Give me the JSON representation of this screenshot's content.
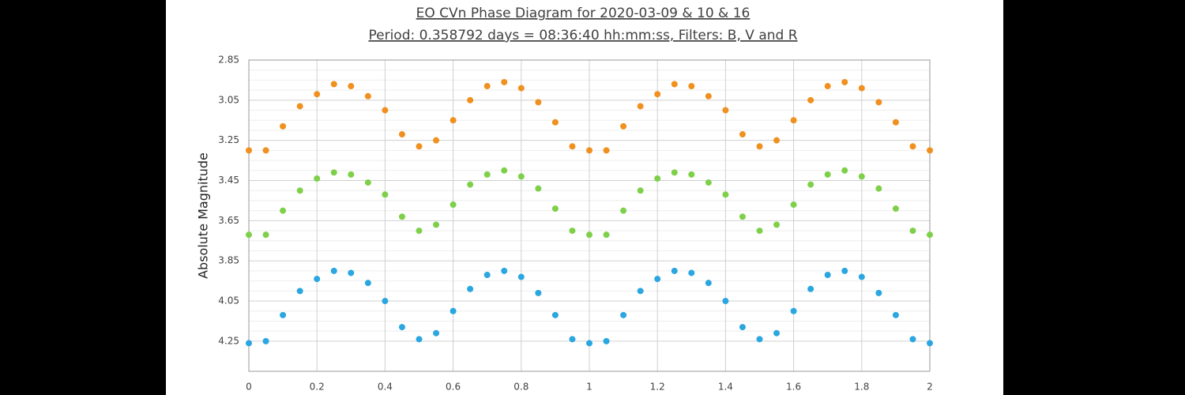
{
  "chart_data": {
    "type": "scatter",
    "title": "EO CVn Phase Diagram for 2020-03-09 & 10 & 16",
    "subtitle": "Period: 0.358792 days = 08:36:40 hh:mm:ss, Filters: B, V and R",
    "y_label": "Absolute Magnitude",
    "x": [
      0,
      0.05,
      0.1,
      0.15,
      0.2,
      0.25,
      0.3,
      0.35,
      0.4,
      0.45,
      0.5,
      0.55,
      0.6,
      0.65,
      0.7,
      0.75,
      0.8,
      0.85,
      0.9,
      0.95,
      1,
      1.05,
      1.1,
      1.15,
      1.2,
      1.25,
      1.3,
      1.35,
      1.4,
      1.45,
      1.5,
      1.55,
      1.6,
      1.65,
      1.7,
      1.75,
      1.8,
      1.85,
      1.9,
      1.95,
      2
    ],
    "series": [
      {
        "color": "#f0901e",
        "values": [
          3.3,
          3.3,
          3.18,
          3.08,
          3.02,
          2.97,
          2.98,
          3.03,
          3.1,
          3.22,
          3.28,
          3.25,
          3.15,
          3.05,
          2.98,
          2.96,
          2.99,
          3.06,
          3.16,
          3.28,
          3.3,
          3.3,
          3.18,
          3.08,
          3.02,
          2.97,
          2.98,
          3.03,
          3.1,
          3.22,
          3.28,
          3.25,
          3.15,
          3.05,
          2.98,
          2.96,
          2.99,
          3.06,
          3.16,
          3.28,
          3.3
        ]
      },
      {
        "color": "#7ed04a",
        "values": [
          3.72,
          3.72,
          3.6,
          3.5,
          3.44,
          3.41,
          3.42,
          3.46,
          3.52,
          3.63,
          3.7,
          3.67,
          3.57,
          3.47,
          3.42,
          3.4,
          3.43,
          3.49,
          3.59,
          3.7,
          3.72,
          3.72,
          3.6,
          3.5,
          3.44,
          3.41,
          3.42,
          3.46,
          3.52,
          3.63,
          3.7,
          3.67,
          3.57,
          3.47,
          3.42,
          3.4,
          3.43,
          3.49,
          3.59,
          3.7,
          3.72
        ]
      },
      {
        "color": "#2aa6e0",
        "values": [
          4.26,
          4.25,
          4.12,
          4.0,
          3.94,
          3.9,
          3.91,
          3.96,
          4.05,
          4.18,
          4.24,
          4.21,
          4.1,
          3.99,
          3.92,
          3.9,
          3.93,
          4.01,
          4.12,
          4.24,
          4.26,
          4.25,
          4.12,
          4.0,
          3.94,
          3.9,
          3.91,
          3.96,
          4.05,
          4.18,
          4.24,
          4.21,
          4.1,
          3.99,
          3.92,
          3.9,
          3.93,
          4.01,
          4.12,
          4.24,
          4.26
        ]
      }
    ],
    "xlim": [
      0,
      2
    ],
    "xticks": [
      0,
      0.2,
      0.4,
      0.6,
      0.8,
      1,
      1.2,
      1.4,
      1.6,
      1.8,
      2
    ],
    "ylim": [
      2.85,
      4.4
    ],
    "yticks": [
      2.85,
      3.05,
      3.25,
      3.45,
      3.65,
      3.85,
      4.05,
      4.25
    ],
    "y_inverted": true,
    "grid": true,
    "minor_grid": true
  }
}
